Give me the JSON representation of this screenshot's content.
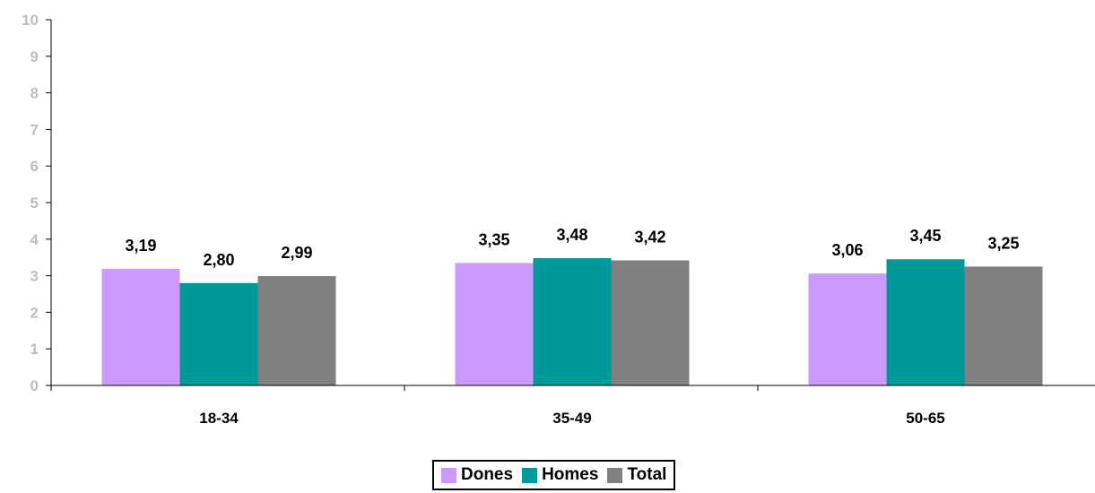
{
  "chart_data": {
    "type": "bar",
    "categories": [
      "18-34",
      "35-49",
      "50-65"
    ],
    "series": [
      {
        "name": "Dones",
        "values": [
          3.19,
          3.35,
          3.06
        ],
        "labels": [
          "3,19",
          "3,35",
          "3,06"
        ],
        "color": "#cc99ff"
      },
      {
        "name": "Homes",
        "values": [
          2.8,
          3.48,
          3.45
        ],
        "labels": [
          "2,80",
          "3,48",
          "3,45"
        ],
        "color": "#009999"
      },
      {
        "name": "Total",
        "values": [
          2.99,
          3.42,
          3.25
        ],
        "labels": [
          "2,99",
          "3,42",
          "3,25"
        ],
        "color": "#808080"
      }
    ],
    "ylim": [
      0,
      10
    ],
    "yticks": [
      "0",
      "1",
      "2",
      "3",
      "4",
      "5",
      "6",
      "7",
      "8",
      "9",
      "10"
    ],
    "grid": false,
    "legend_position": "bottom-center"
  }
}
